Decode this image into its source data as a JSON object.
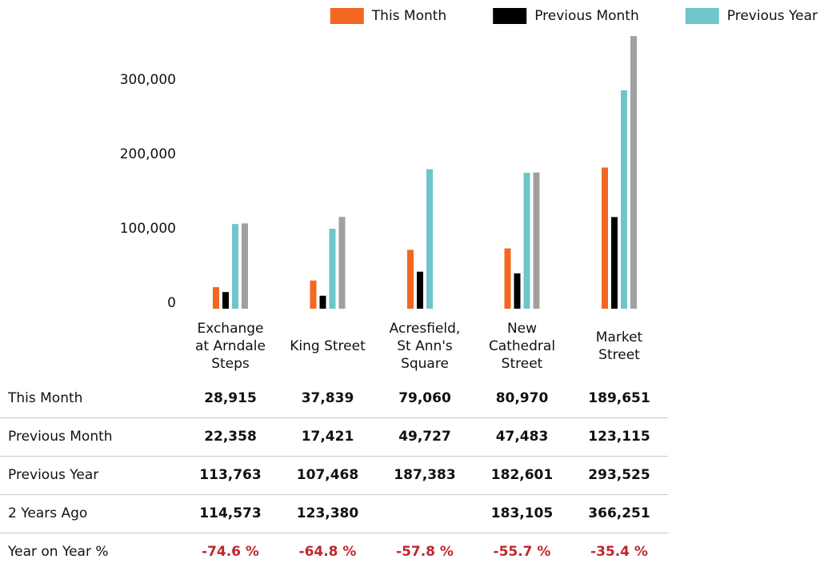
{
  "chart_data": {
    "type": "bar",
    "categories": [
      "Exchange at Arndale Steps",
      "King Street",
      "Acresfield, St Ann's Square",
      "New Cathedral Street",
      "Market Street"
    ],
    "series": [
      {
        "name": "This Month",
        "color": "#f26722",
        "in_legend": true,
        "values": [
          28915,
          37839,
          79060,
          80970,
          189651
        ],
        "value_labels": [
          "28,915",
          "37,839",
          "79,060",
          "80,970",
          "189,651"
        ]
      },
      {
        "name": "Previous Month",
        "color": "#000000",
        "in_legend": true,
        "values": [
          22358,
          17421,
          49727,
          47483,
          123115
        ],
        "value_labels": [
          "22,358",
          "17,421",
          "49,727",
          "47,483",
          "123,115"
        ]
      },
      {
        "name": "Previous Year",
        "color": "#6ec6cc",
        "in_legend": true,
        "values": [
          113763,
          107468,
          187383,
          182601,
          293525
        ],
        "value_labels": [
          "113,763",
          "107,468",
          "187,383",
          "182,601",
          "293,525"
        ]
      },
      {
        "name": "2 Years Ago",
        "color": "#a0a0a0",
        "in_legend": false,
        "values": [
          114573,
          123380,
          null,
          183105,
          366251
        ],
        "value_labels": [
          "114,573",
          "123,380",
          null,
          "183,105",
          "366,251"
        ]
      }
    ],
    "yoy": {
      "name": "Year on Year %",
      "color": "#c0272d",
      "values": [
        -74.6,
        -64.8,
        -57.8,
        -55.7,
        -35.4
      ],
      "value_labels": [
        "-74.6 %",
        "-64.8 %",
        "-57.8 %",
        "-55.7 %",
        "-35.4 %"
      ]
    },
    "ylim": [
      0,
      375000
    ],
    "yticks": [
      0,
      {
        "value": 100000,
        "label": "100,000"
      },
      {
        "value": 200000,
        "label": "200,000"
      },
      {
        "value": 300000,
        "label": "300,000"
      }
    ],
    "grid": false,
    "legend": "top-right"
  }
}
